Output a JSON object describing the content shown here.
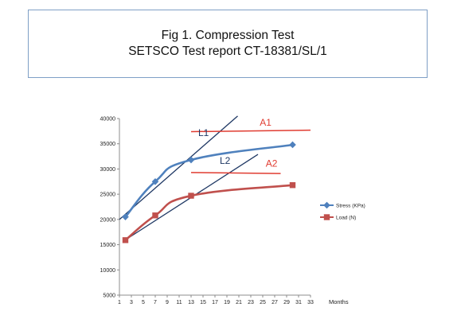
{
  "header": {
    "title_line1": "Fig 1. Compression Test",
    "title_line2": "SETSCO Test report CT-18381/SL/1"
  },
  "chart_data": {
    "type": "line",
    "xlabel": "Months",
    "ylabel": "",
    "xlim": [
      1,
      33
    ],
    "ylim": [
      5000,
      40000
    ],
    "x_ticks": [
      1,
      3,
      5,
      7,
      9,
      11,
      13,
      15,
      17,
      19,
      21,
      23,
      25,
      27,
      29,
      31,
      33
    ],
    "y_ticks": [
      5000,
      10000,
      15000,
      20000,
      25000,
      30000,
      35000,
      40000
    ],
    "grid": false,
    "legend_position": "right",
    "series": [
      {
        "name": "Stress (KPa)",
        "color": "#4f81bd",
        "marker": "diamond",
        "points": [
          [
            2,
            20500
          ],
          [
            7,
            27500
          ],
          [
            13,
            31800
          ],
          [
            30,
            34800
          ]
        ]
      },
      {
        "name": "Load (N)",
        "color": "#c0504d",
        "marker": "square",
        "points": [
          [
            2,
            15900
          ],
          [
            7,
            20800
          ],
          [
            13,
            24700
          ],
          [
            30,
            26800
          ]
        ]
      }
    ],
    "annotations": [
      {
        "text": "L1",
        "color": "#1f3864",
        "x": 14.2,
        "y": 36500
      },
      {
        "text": "L2",
        "color": "#1f3864",
        "x": 17.8,
        "y": 31000
      },
      {
        "text": "A1",
        "color": "#e03c31",
        "x": 24.5,
        "y": 38600
      },
      {
        "text": "A2",
        "color": "#e03c31",
        "x": 25.5,
        "y": 30500
      }
    ],
    "reference_lines": [
      {
        "name": "L1",
        "color": "#1f3864",
        "from": [
          1,
          20000
        ],
        "to": [
          20.8,
          40500
        ]
      },
      {
        "name": "L2",
        "color": "#1f3864",
        "from": [
          1.8,
          15800
        ],
        "to": [
          24.2,
          32900
        ]
      },
      {
        "name": "A1",
        "color": "#e03c31",
        "from": [
          13,
          37400
        ],
        "to": [
          33,
          37700
        ]
      },
      {
        "name": "A2",
        "color": "#e03c31",
        "from": [
          13,
          29300
        ],
        "to": [
          28,
          29100
        ]
      }
    ]
  }
}
